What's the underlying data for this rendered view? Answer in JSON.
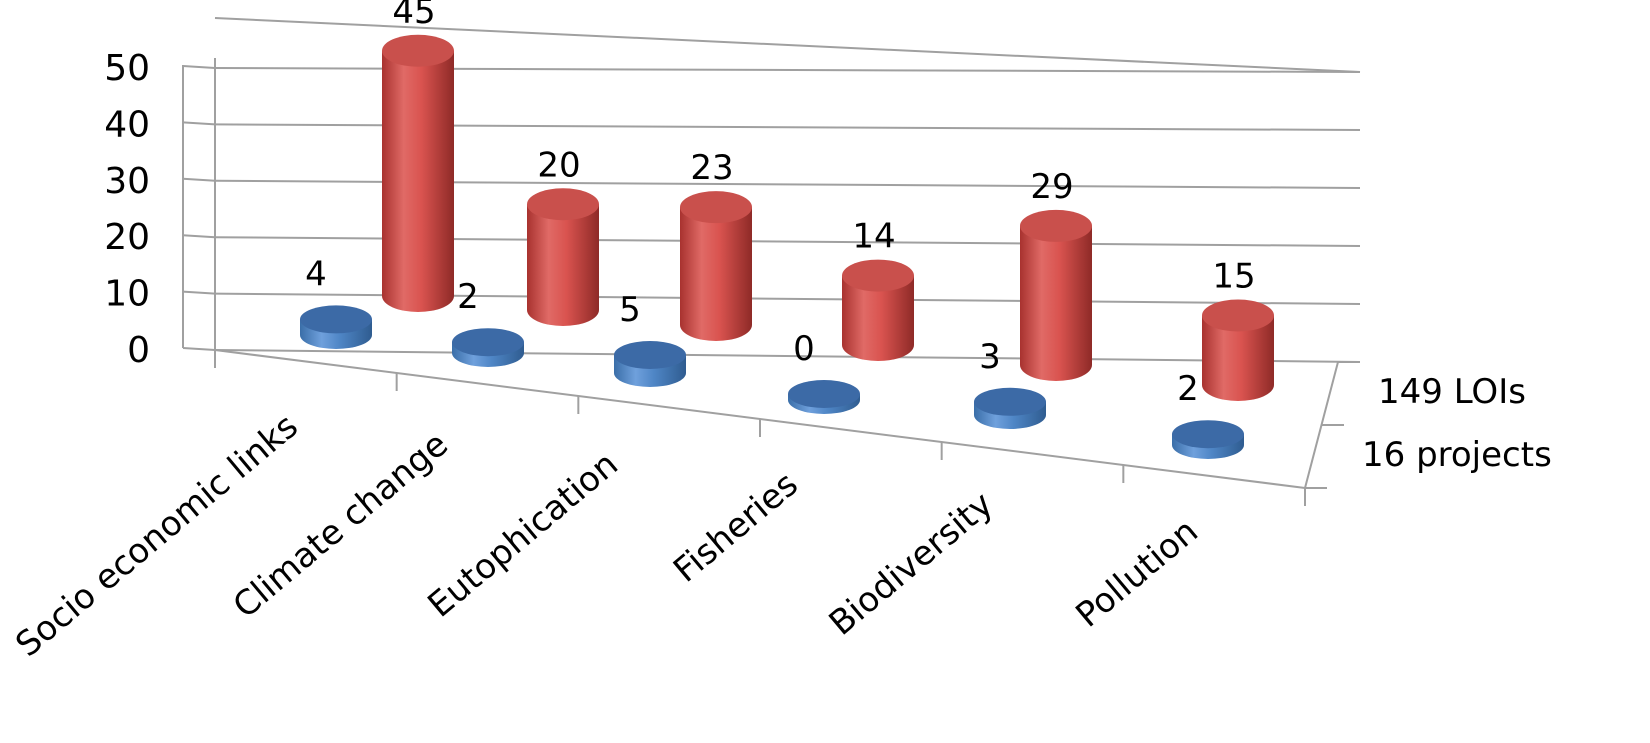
{
  "chart_data": {
    "type": "bar",
    "style": "3d-cylinder",
    "categories": [
      "Socio economic links",
      "Climate change",
      "Eutophication",
      "Fisheries",
      "Biodiversity",
      "Pollution"
    ],
    "series": [
      {
        "name": "16 projects",
        "values": [
          4,
          2,
          5,
          0,
          3,
          2
        ],
        "color": "#4f81bd"
      },
      {
        "name": "149 LOIs",
        "values": [
          45,
          20,
          23,
          14,
          29,
          15
        ],
        "color": "#c0504d"
      }
    ],
    "y_ticks": [
      "0",
      "10",
      "20",
      "30",
      "40",
      "50"
    ],
    "ylim": [
      0,
      50
    ],
    "grid": true
  }
}
